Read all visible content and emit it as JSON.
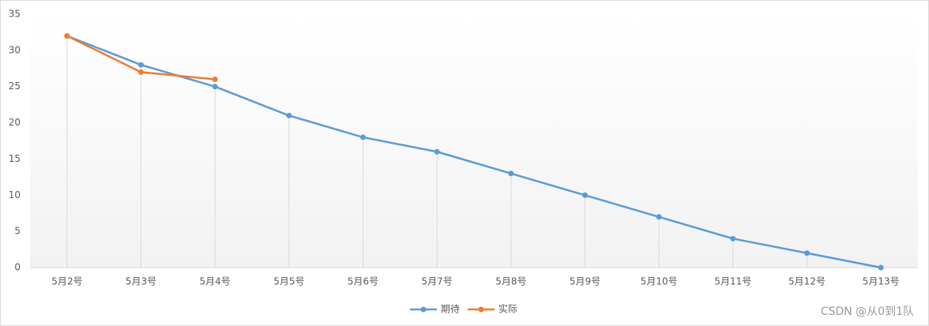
{
  "chart_data": {
    "type": "line",
    "categories": [
      "5月2号",
      "5月3号",
      "5月4号",
      "5月5号",
      "5月6号",
      "5月7号",
      "5月8号",
      "5月9号",
      "5月10号",
      "5月11号",
      "5月12号",
      "5月13号"
    ],
    "series": [
      {
        "name": "期待",
        "color": "#5b9bd5",
        "values": [
          32,
          28,
          25,
          21,
          18,
          16,
          13,
          10,
          7,
          4,
          2,
          0
        ]
      },
      {
        "name": "实际",
        "color": "#ed7d31",
        "values": [
          32,
          27,
          26,
          null,
          null,
          null,
          null,
          null,
          null,
          null,
          null,
          null
        ]
      }
    ],
    "ylim": [
      0,
      35
    ],
    "yticks": [
      0,
      5,
      10,
      15,
      20,
      25,
      30,
      35
    ],
    "drop_lines": true,
    "legend": "bottom",
    "watermark": "CSDN @从0到1队"
  }
}
